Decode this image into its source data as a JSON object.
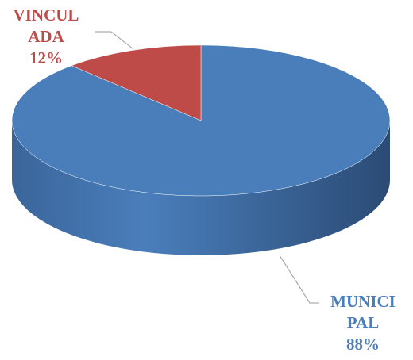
{
  "chart_data": {
    "type": "pie",
    "categories": [
      "MUNICIPAL",
      "VINCULADA"
    ],
    "values": [
      88,
      12
    ],
    "value_labels": [
      "88%",
      "12%"
    ],
    "colors": [
      "#4a7ebb",
      "#be4b48"
    ]
  }
}
